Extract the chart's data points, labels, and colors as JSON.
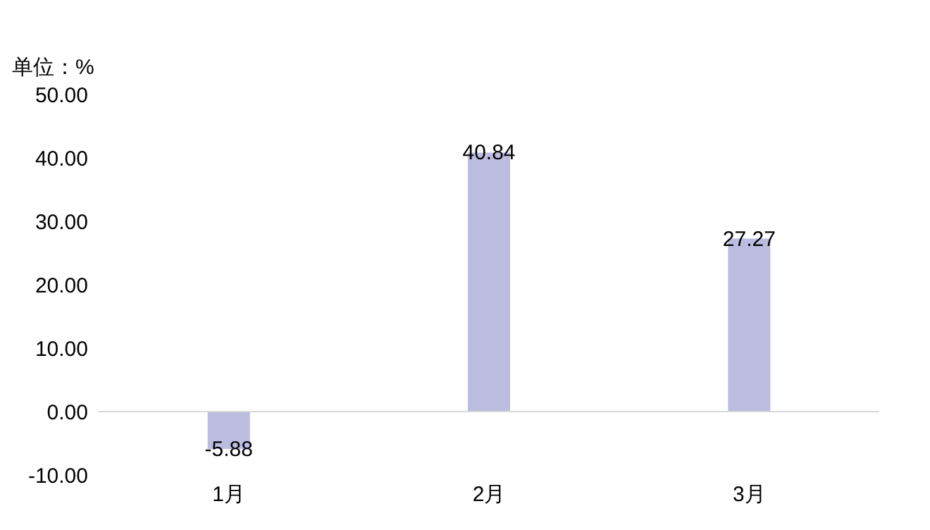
{
  "chart_data": {
    "type": "bar",
    "ylabel": "单位：%",
    "categories": [
      "1月",
      "2月",
      "3月"
    ],
    "values": [
      -5.88,
      40.84,
      27.27
    ],
    "color": "#bcbce0",
    "ylim": [
      -10,
      50
    ],
    "yticks": [
      {
        "value": -10,
        "label": "-10.00"
      },
      {
        "value": 0,
        "label": "0.00"
      },
      {
        "value": 10,
        "label": "10.00"
      },
      {
        "value": 20,
        "label": "20.00"
      },
      {
        "value": 30,
        "label": "30.00"
      },
      {
        "value": 40,
        "label": "40.00"
      },
      {
        "value": 50,
        "label": "50.00"
      }
    ],
    "ref_lines": [
      {
        "axis": "y",
        "value": 0,
        "color": "#d9d9d9"
      }
    ],
    "data_labels": true
  }
}
